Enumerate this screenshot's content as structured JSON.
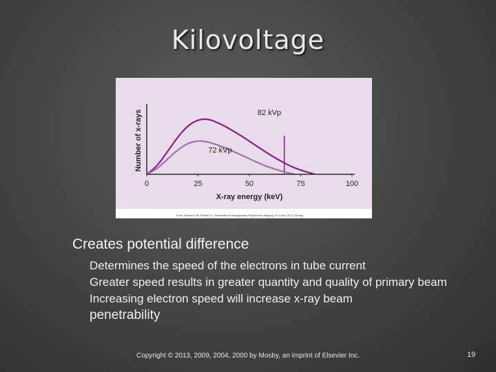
{
  "slide": {
    "title": "Kilovoltage",
    "footer": "Copyright © 2013, 2009, 2004, 2000 by Mosby, an imprint of Elsevier Inc.",
    "page_number": "19"
  },
  "bullets": {
    "main": {
      "marker": "",
      "text": "Creates potential difference"
    },
    "sub": [
      {
        "marker": "",
        "text": "Determines the speed of the electrons in tube current"
      },
      {
        "marker": "",
        "text": "Greater speed results in greater quantity and quality of primary beam"
      },
      {
        "marker": "",
        "text": "Increasing electron speed will increase x-ray beam",
        "tail": "penetrability"
      }
    ]
  },
  "chart_data": {
    "type": "line",
    "xlabel": "X-ray energy (keV)",
    "ylabel": "Number of x-rays",
    "xlim": [
      0,
      100
    ],
    "ylim": [
      0,
      10
    ],
    "x_ticks": [
      "0",
      "25",
      "50",
      "75",
      "100"
    ],
    "credit": "From Johnston JN, Fauber TL: Essentials of Radiographic Physics and Imaging. St. Louis, 2012, Mosby.",
    "colors": {
      "panel": "#e9dcea",
      "high": "#8a1f86",
      "low": "#a370ad",
      "axis": "#2a2a2a"
    },
    "series": [
      {
        "name": "82 kVp",
        "x": [
          0,
          5,
          10,
          15,
          20,
          25,
          30,
          35,
          40,
          45,
          50,
          55,
          60,
          65,
          70,
          75,
          82
        ],
        "y": [
          0,
          1.2,
          3.3,
          5.5,
          7.2,
          8.1,
          8.2,
          7.6,
          6.8,
          5.9,
          4.9,
          3.9,
          2.9,
          2.0,
          1.2,
          0.6,
          0
        ]
      },
      {
        "name": "72 kVp",
        "x": [
          0,
          5,
          10,
          15,
          20,
          25,
          30,
          35,
          40,
          45,
          50,
          55,
          60,
          65,
          72
        ],
        "y": [
          0,
          0.8,
          2.2,
          3.6,
          4.6,
          5.0,
          4.8,
          4.3,
          3.7,
          3.0,
          2.3,
          1.6,
          1.0,
          0.5,
          0
        ]
      }
    ],
    "markers": [
      {
        "x": 67,
        "y_top": 5.7,
        "series": "82 kVp"
      },
      {
        "x": 67,
        "y_top": 0.5,
        "series": "72 kVp"
      }
    ],
    "annotations": [
      {
        "text": "82 kVp",
        "x": 54,
        "y": 8.8
      },
      {
        "text": "72 kVp",
        "x": 30,
        "y": 3.2
      }
    ]
  }
}
